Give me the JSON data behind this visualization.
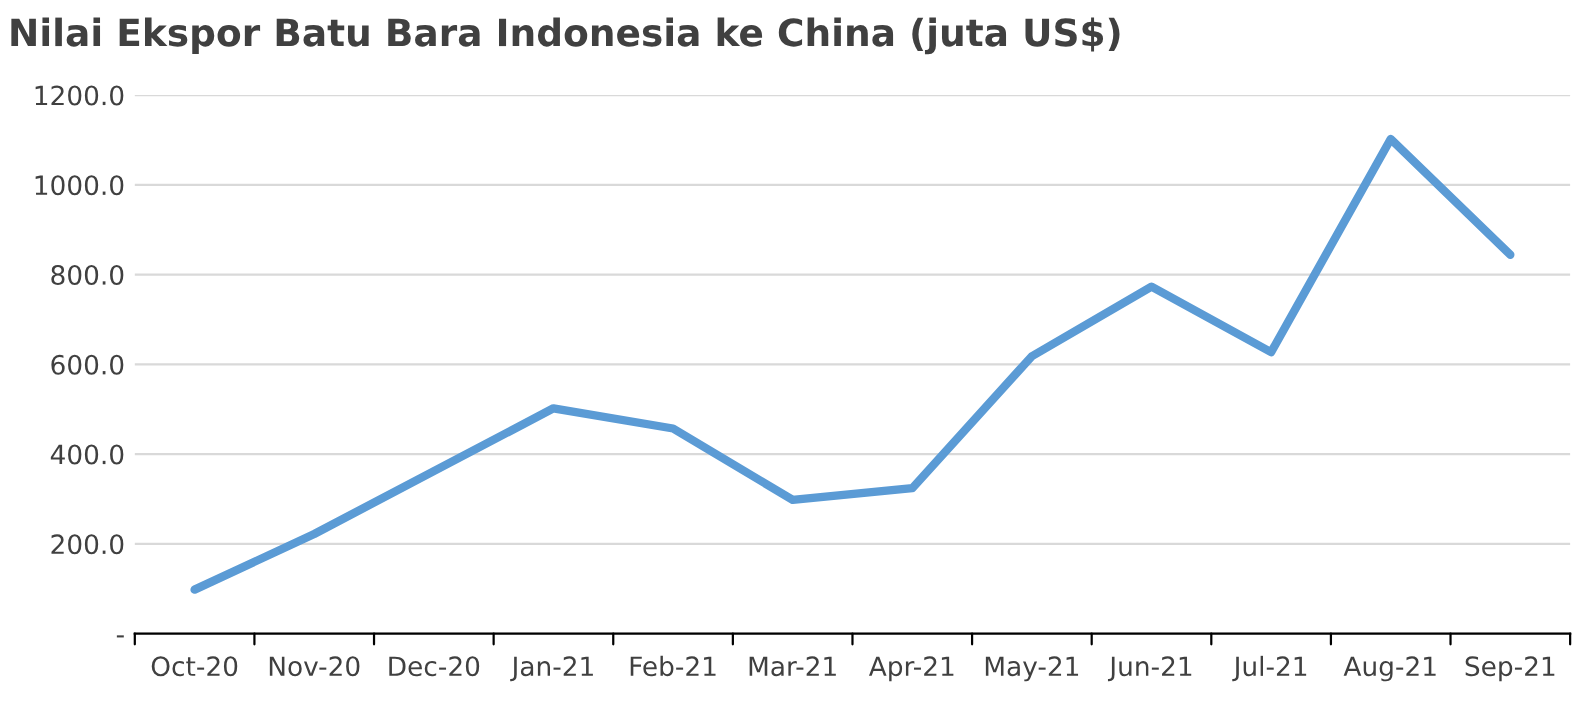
{
  "chart_data": {
    "type": "line",
    "title": "Nilai Ekspor Batu Bara Indonesia ke China (juta US$)",
    "categories": [
      "Oct-20",
      "Nov-20",
      "Dec-20",
      "Jan-21",
      "Feb-21",
      "Mar-21",
      "Apr-21",
      "May-21",
      "Jun-21",
      "Jul-21",
      "Aug-21",
      "Sep-21"
    ],
    "series": [
      {
        "color": "#5b9bd5",
        "values": [
          98,
          222,
          362,
          502,
          457,
          298,
          324,
          618,
          773,
          627,
          1102,
          844
        ]
      }
    ],
    "ylim": [
      0,
      1200
    ],
    "yticks": [
      {
        "value": 0,
        "label": "-"
      },
      {
        "value": 200,
        "label": "200.0"
      },
      {
        "value": 400,
        "label": "400.0"
      },
      {
        "value": 600,
        "label": "600.0"
      },
      {
        "value": 800,
        "label": "800.0"
      },
      {
        "value": 1000,
        "label": "1000.0"
      },
      {
        "value": 1200,
        "label": "1200.0"
      }
    ],
    "grid": "y",
    "marker": "none",
    "line_style": "solid"
  }
}
